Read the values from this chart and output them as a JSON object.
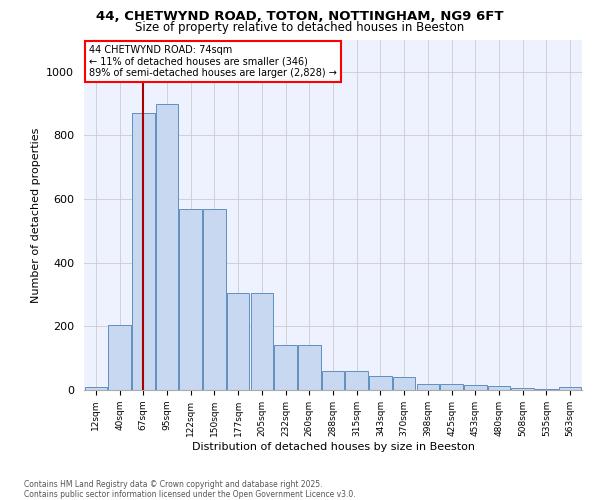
{
  "title_line1": "44, CHETWYND ROAD, TOTON, NOTTINGHAM, NG9 6FT",
  "title_line2": "Size of property relative to detached houses in Beeston",
  "xlabel": "Distribution of detached houses by size in Beeston",
  "ylabel": "Number of detached properties",
  "footer": "Contains HM Land Registry data © Crown copyright and database right 2025.\nContains public sector information licensed under the Open Government Licence v3.0.",
  "annotation_title": "44 CHETWYND ROAD: 74sqm",
  "annotation_line1": "← 11% of detached houses are smaller (346)",
  "annotation_line2": "89% of semi-detached houses are larger (2,828) →",
  "bar_color": "#c8d8f0",
  "bar_edge_color": "#6090c0",
  "grid_color": "#cccccc",
  "vline_color": "#aa0000",
  "vline_x": 2.0,
  "categories": [
    "12sqm",
    "40sqm",
    "67sqm",
    "95sqm",
    "122sqm",
    "150sqm",
    "177sqm",
    "205sqm",
    "232sqm",
    "260sqm",
    "288sqm",
    "315sqm",
    "343sqm",
    "370sqm",
    "398sqm",
    "425sqm",
    "453sqm",
    "480sqm",
    "508sqm",
    "535sqm",
    "563sqm"
  ],
  "values": [
    10,
    205,
    870,
    900,
    570,
    570,
    305,
    305,
    140,
    140,
    60,
    60,
    45,
    40,
    18,
    18,
    15,
    12,
    5,
    3,
    8
  ],
  "ylim": [
    0,
    1100
  ],
  "yticks": [
    0,
    200,
    400,
    600,
    800,
    1000
  ],
  "bg_color": "#eef2ff",
  "fig_bg_color": "#ffffff",
  "footer_color": "#555555"
}
